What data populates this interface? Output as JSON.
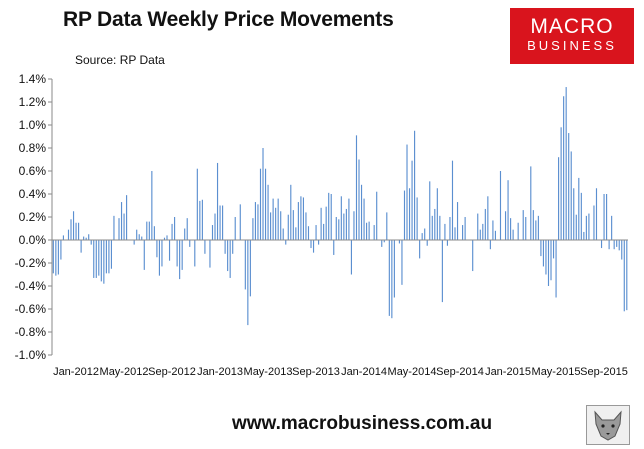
{
  "header": {
    "title": "RP Data Weekly Price Movements",
    "source": "Source: RP Data"
  },
  "logo": {
    "line1": "MACRO",
    "line2": "BUSINESS"
  },
  "footer": {
    "url": "www.macrobusiness.com.au"
  },
  "colors": {
    "bar": "#5b8fd0",
    "axis": "#8a8a8a",
    "brand_red": "#d9141d"
  },
  "icons": [
    "fox-logo-icon"
  ],
  "chart_data": {
    "type": "bar",
    "title": "RP Data Weekly Price Movements",
    "xlabel": "",
    "ylabel": "",
    "ylim": [
      -1.0,
      1.4
    ],
    "y_ticks": [
      "1.4%",
      "1.2%",
      "1.0%",
      "0.8%",
      "0.6%",
      "0.4%",
      "0.2%",
      "0.0%",
      "-0.2%",
      "-0.4%",
      "-0.6%",
      "-0.8%",
      "-1.0%"
    ],
    "x_ticks": [
      "Jan-2012",
      "May-2012",
      "Sep-2012",
      "Jan-2013",
      "May-2013",
      "Sep-2013",
      "Jan-2014",
      "May-2014",
      "Sep-2014",
      "Jan-2015",
      "May-2015",
      "Sep-2015"
    ],
    "grid": false,
    "legend": "none",
    "frequency": "weekly",
    "values": [
      -0.29,
      -0.31,
      -0.3,
      -0.17,
      0.04,
      0.0,
      0.09,
      0.18,
      0.25,
      0.15,
      0.15,
      -0.11,
      0.03,
      0.02,
      0.05,
      -0.04,
      -0.33,
      -0.33,
      -0.31,
      -0.36,
      -0.38,
      -0.29,
      -0.29,
      -0.25,
      0.21,
      0.0,
      0.19,
      0.33,
      0.23,
      0.39,
      0.0,
      0.0,
      -0.04,
      0.09,
      0.05,
      0.03,
      -0.26,
      0.16,
      0.16,
      0.6,
      0.12,
      -0.15,
      -0.31,
      -0.23,
      0.02,
      0.04,
      -0.18,
      0.14,
      0.2,
      -0.23,
      -0.34,
      -0.26,
      0.1,
      0.19,
      -0.06,
      0.0,
      -0.23,
      0.62,
      0.34,
      0.35,
      -0.12,
      0.0,
      -0.24,
      0.13,
      0.23,
      0.67,
      0.3,
      0.3,
      -0.12,
      -0.27,
      -0.33,
      -0.12,
      0.2,
      0.0,
      0.31,
      0.0,
      -0.43,
      -0.74,
      -0.49,
      0.19,
      0.33,
      0.31,
      0.62,
      0.8,
      0.62,
      0.48,
      0.24,
      0.36,
      0.28,
      0.36,
      0.25,
      0.1,
      -0.04,
      0.22,
      0.48,
      0.26,
      0.11,
      0.33,
      0.38,
      0.37,
      0.24,
      0.12,
      -0.07,
      -0.11,
      0.13,
      -0.04,
      0.28,
      0.14,
      0.29,
      0.41,
      0.4,
      -0.13,
      0.2,
      0.18,
      0.38,
      0.23,
      0.27,
      0.36,
      -0.3,
      0.25,
      0.91,
      0.7,
      0.48,
      0.36,
      0.15,
      0.16,
      0.0,
      0.13,
      0.42,
      0.0,
      -0.06,
      -0.02,
      0.24,
      -0.66,
      -0.68,
      -0.5,
      0.0,
      -0.03,
      -0.39,
      0.43,
      0.83,
      0.45,
      0.69,
      0.95,
      0.37,
      -0.16,
      0.06,
      0.1,
      -0.05,
      0.51,
      0.21,
      0.27,
      0.45,
      0.21,
      -0.54,
      0.14,
      -0.05,
      0.2,
      0.69,
      0.11,
      0.33,
      0.0,
      0.13,
      0.2,
      0.0,
      0.0,
      -0.27,
      0.0,
      0.23,
      0.09,
      0.14,
      0.27,
      0.38,
      -0.08,
      0.17,
      0.08,
      0.0,
      0.6,
      0.0,
      0.25,
      0.52,
      0.19,
      0.09,
      0.0,
      0.15,
      0.0,
      0.26,
      0.2,
      0.0,
      0.64,
      0.26,
      0.17,
      0.21,
      -0.14,
      -0.23,
      -0.3,
      -0.4,
      -0.35,
      -0.16,
      -0.5,
      0.72,
      0.98,
      1.25,
      1.33,
      0.93,
      0.77,
      0.45,
      0.22,
      0.54,
      0.41,
      0.07,
      0.21,
      0.23,
      0.0,
      0.3,
      0.45,
      0.0,
      -0.07,
      0.4,
      0.4,
      -0.08,
      0.21,
      -0.08,
      -0.06,
      -0.09,
      -0.17,
      -0.62,
      -0.61
    ]
  }
}
